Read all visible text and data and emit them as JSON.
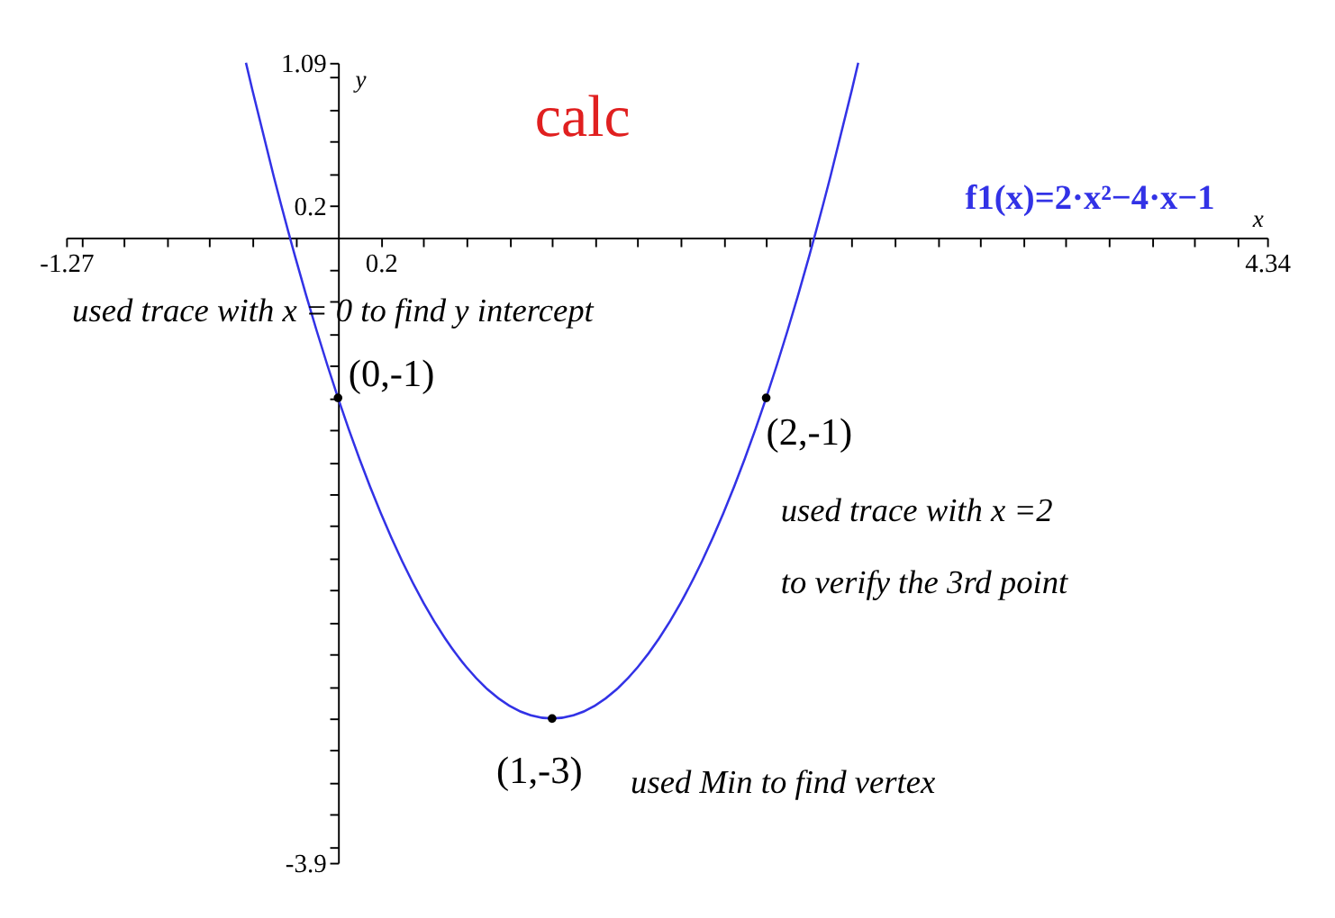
{
  "chart_data": {
    "type": "line",
    "xlabel": "x",
    "ylabel": "y",
    "xlim": [
      -1.27,
      4.34
    ],
    "ylim": [
      -3.9,
      1.09
    ],
    "xticks": [
      -1.27,
      {
        "value": -1.2,
        "label": null
      },
      {
        "value": -1.0,
        "label": null
      },
      {
        "value": -0.8,
        "label": null
      },
      {
        "value": -0.6,
        "label": null
      },
      {
        "value": -0.4,
        "label": null
      },
      {
        "value": -0.2,
        "label": null
      },
      0.2,
      {
        "value": 0.4,
        "label": null
      },
      {
        "value": 0.6,
        "label": null
      },
      {
        "value": 0.8,
        "label": null
      },
      {
        "value": 1.0,
        "label": null
      },
      {
        "value": 1.2,
        "label": null
      },
      {
        "value": 1.4,
        "label": null
      },
      {
        "value": 1.6,
        "label": null
      },
      {
        "value": 1.8,
        "label": null
      },
      {
        "value": 2.0,
        "label": null
      },
      {
        "value": 2.2,
        "label": null
      },
      {
        "value": 2.4,
        "label": null
      },
      {
        "value": 2.6,
        "label": null
      },
      {
        "value": 2.8,
        "label": null
      },
      {
        "value": 3.0,
        "label": null
      },
      {
        "value": 3.2,
        "label": null
      },
      {
        "value": 3.4,
        "label": null
      },
      {
        "value": 3.6,
        "label": null
      },
      {
        "value": 3.8,
        "label": null
      },
      {
        "value": 4.0,
        "label": null
      },
      {
        "value": 4.2,
        "label": null
      },
      4.34
    ],
    "yticks": [
      -3.9,
      {
        "value": -3.8,
        "label": null
      },
      {
        "value": -3.6,
        "label": null
      },
      {
        "value": -3.4,
        "label": null
      },
      {
        "value": -3.2,
        "label": null
      },
      {
        "value": -3.0,
        "label": null
      },
      {
        "value": -2.8,
        "label": null
      },
      {
        "value": -2.6,
        "label": null
      },
      {
        "value": -2.4,
        "label": null
      },
      {
        "value": -2.2,
        "label": null
      },
      {
        "value": -2.0,
        "label": null
      },
      {
        "value": -1.8,
        "label": null
      },
      {
        "value": -1.6,
        "label": null
      },
      {
        "value": -1.4,
        "label": null
      },
      {
        "value": -1.2,
        "label": null
      },
      {
        "value": -1.0,
        "label": null
      },
      {
        "value": -0.8,
        "label": null
      },
      {
        "value": -0.6,
        "label": null
      },
      {
        "value": -0.4,
        "label": null
      },
      {
        "value": -0.2,
        "label": null
      },
      0.2,
      {
        "value": 0.4,
        "label": null
      },
      {
        "value": 0.6,
        "label": null
      },
      {
        "value": 0.8,
        "label": null
      },
      {
        "value": 1.0,
        "label": null
      },
      1.09
    ],
    "grid": false,
    "series": [
      {
        "name": "f1(x)=2·x²−4·x−1",
        "color": "#3232e6",
        "marker": "none",
        "line_style": "solid",
        "x": [
          -0.43,
          -0.4,
          -0.3,
          -0.2,
          -0.1,
          0,
          0.1,
          0.2,
          0.3,
          0.4,
          0.5,
          0.6,
          0.7,
          0.8,
          0.9,
          1.0,
          1.1,
          1.2,
          1.3,
          1.4,
          1.5,
          1.6,
          1.7,
          1.8,
          1.9,
          2.0,
          2.1,
          2.2,
          2.3,
          2.4,
          2.43
        ],
        "values": [
          1.09,
          0.92,
          0.38,
          -0.12,
          -0.58,
          -1,
          -1.38,
          -1.72,
          -2.02,
          -2.28,
          -2.5,
          -2.68,
          -2.82,
          -2.92,
          -2.98,
          -3,
          -2.98,
          -2.92,
          -2.82,
          -2.68,
          -2.5,
          -2.28,
          -2.02,
          -1.72,
          -1.38,
          -1,
          -0.58,
          -0.12,
          0.38,
          0.92,
          1.09
        ]
      },
      {
        "type": "scatter",
        "color": "#000000",
        "marker": "circle",
        "x": [
          0,
          1,
          2
        ],
        "values": [
          -1,
          -3,
          -1
        ]
      }
    ],
    "annotations": [
      "calc",
      "used trace with x = 0 to find y intercept",
      {
        "text": "(0,-1)",
        "x": 0,
        "y": -1
      },
      {
        "text": "(2,-1)",
        "x": 2,
        "y": -1
      },
      "used trace with x =2",
      "to verify the 3rd point",
      {
        "text": "(1,-3)",
        "x": 1,
        "y": -3
      },
      "used Min to find vertex"
    ]
  }
}
